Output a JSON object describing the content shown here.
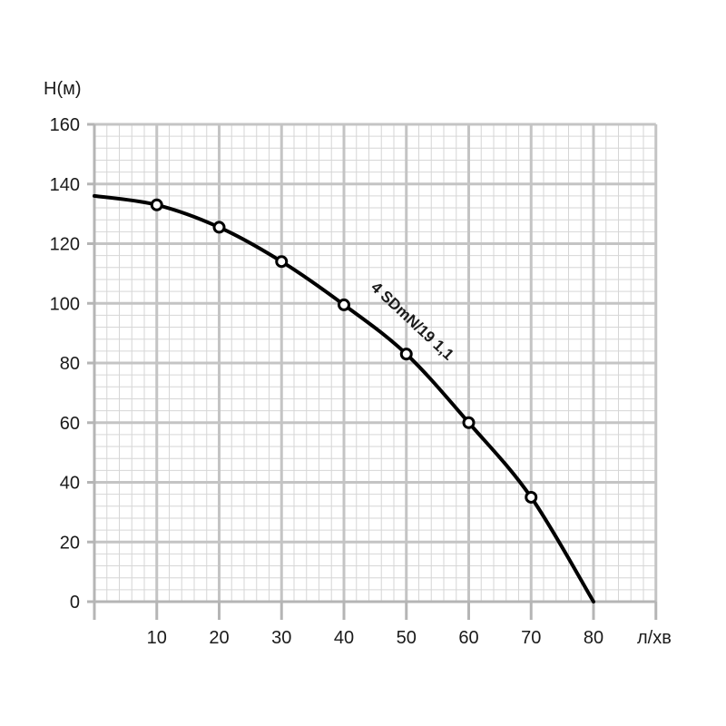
{
  "chart_data": {
    "type": "line",
    "title": "",
    "xlabel": "л/хв",
    "ylabel": "H(м)",
    "xlim": [
      0,
      90
    ],
    "ylim": [
      0,
      160
    ],
    "x_ticks": [
      10,
      20,
      30,
      40,
      50,
      60,
      70,
      80
    ],
    "y_ticks": [
      0,
      20,
      40,
      60,
      80,
      100,
      120,
      140,
      160
    ],
    "grid": true,
    "series": [
      {
        "name": "4 SDmN/19 1,1",
        "x": [
          0,
          10,
          20,
          30,
          40,
          50,
          60,
          70,
          80
        ],
        "y": [
          136,
          133,
          125.5,
          114,
          99.5,
          83,
          60,
          35,
          0
        ],
        "markers_at": [
          10,
          20,
          30,
          40,
          50,
          60,
          70
        ]
      }
    ]
  }
}
